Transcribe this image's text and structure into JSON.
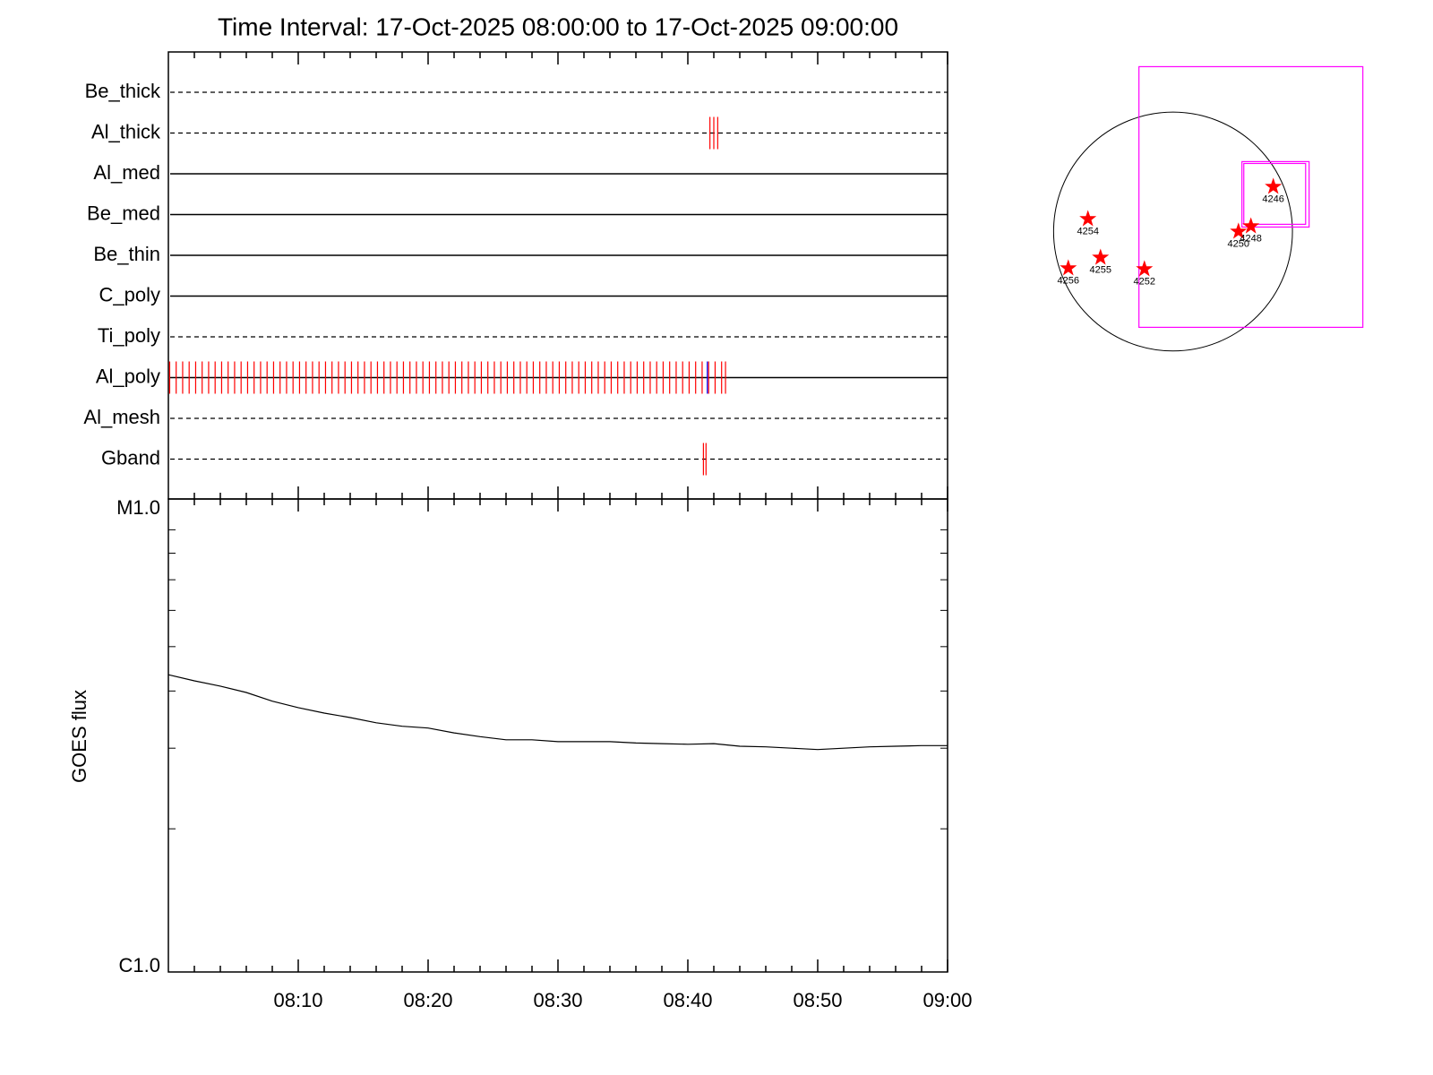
{
  "chart_data": [
    {
      "type": "timeline",
      "title": "Time Interval: 17-Oct-2025 08:00:00 to 17-Oct-2025 09:00:00",
      "xlim": [
        0,
        60
      ],
      "rows": [
        {
          "name": "Be_thick",
          "style": "dashed",
          "events": []
        },
        {
          "name": "Al_thick",
          "style": "dashed",
          "events": [
            {
              "color": "#ff0000",
              "x": [
                41.7,
                42.0,
                42.3
              ]
            }
          ]
        },
        {
          "name": "Al_med",
          "style": "solid",
          "events": []
        },
        {
          "name": "Be_med",
          "style": "solid",
          "events": []
        },
        {
          "name": "Be_thin",
          "style": "solid",
          "events": []
        },
        {
          "name": "C_poly",
          "style": "solid",
          "events": []
        },
        {
          "name": "Ti_poly",
          "style": "dashed",
          "events": []
        },
        {
          "name": "Al_poly",
          "style": "solid",
          "events": [
            {
              "color": "#ff0000",
              "x": [
                0.1,
                0.6,
                1.1,
                1.6,
                2.1,
                2.6,
                3.1,
                3.6,
                4.1,
                4.6,
                5.1,
                5.6,
                6.1,
                6.6,
                7.1,
                7.6,
                8.1,
                8.6,
                9.1,
                9.6,
                10.1,
                10.6,
                11.1,
                11.6,
                12.1,
                12.6,
                13.1,
                13.6,
                14.1,
                14.6,
                15.1,
                15.6,
                16.1,
                16.6,
                17.1,
                17.6,
                18.1,
                18.6,
                19.1,
                19.6,
                20.1,
                20.6,
                21.1,
                21.6,
                22.1,
                22.6,
                23.1,
                23.6,
                24.1,
                24.6,
                25.1,
                25.6,
                26.1,
                26.6,
                27.1,
                27.6,
                28.1,
                28.6,
                29.1,
                29.6,
                30.1,
                30.6,
                31.1,
                31.6,
                32.1,
                32.6,
                33.1,
                33.6,
                34.1,
                34.6,
                35.1,
                35.6,
                36.1,
                36.6,
                37.1,
                37.6,
                38.1,
                38.6,
                39.1,
                39.6,
                40.1,
                40.6,
                41.1,
                41.6,
                42.1,
                42.6,
                42.9
              ]
            },
            {
              "color": "#0000ff",
              "x": [
                41.5
              ]
            }
          ]
        },
        {
          "name": "Al_mesh",
          "style": "dashed",
          "events": []
        },
        {
          "name": "Gband",
          "style": "dashed",
          "events": [
            {
              "color": "#ff0000",
              "x": [
                41.2,
                41.4
              ]
            }
          ]
        }
      ]
    },
    {
      "type": "line",
      "ylabel": "GOES flux",
      "log_y": true,
      "xlim": [
        0,
        60
      ],
      "xticks": [
        {
          "value": 10,
          "label": "08:10"
        },
        {
          "value": 20,
          "label": "08:20"
        },
        {
          "value": 30,
          "label": "08:30"
        },
        {
          "value": 40,
          "label": "08:40"
        },
        {
          "value": 50,
          "label": "08:50"
        },
        {
          "value": 60,
          "label": "09:00"
        }
      ],
      "minor_xticks": [
        2,
        4,
        6,
        8,
        12,
        14,
        16,
        18,
        22,
        24,
        26,
        28,
        32,
        34,
        36,
        38,
        42,
        44,
        46,
        48,
        52,
        54,
        56,
        58
      ],
      "ylim": [
        1e-06,
        1e-05
      ],
      "yticks": [
        {
          "value": 1e-05,
          "label": "M1.0"
        },
        {
          "value": 1e-06,
          "label": "C1.0"
        }
      ],
      "minor_yticks": [
        2e-06,
        3e-06,
        4e-06,
        5e-06,
        6e-06,
        7e-06,
        8e-06,
        9e-06
      ],
      "color": "#000000",
      "x": [
        0,
        2,
        4,
        6,
        8,
        10,
        12,
        14,
        16,
        18,
        20,
        22,
        24,
        26,
        28,
        30,
        32,
        34,
        36,
        38,
        40,
        42,
        44,
        46,
        48,
        50,
        52,
        54,
        56,
        58,
        60
      ],
      "values": [
        4.34e-06,
        4.21e-06,
        4.1e-06,
        3.97e-06,
        3.8e-06,
        3.68e-06,
        3.58e-06,
        3.5e-06,
        3.41e-06,
        3.35e-06,
        3.32e-06,
        3.24e-06,
        3.18e-06,
        3.13e-06,
        3.13e-06,
        3.1e-06,
        3.1e-06,
        3.1e-06,
        3.08e-06,
        3.07e-06,
        3.06e-06,
        3.07e-06,
        3.03e-06,
        3.02e-06,
        3e-06,
        2.98e-06,
        3e-06,
        3.02e-06,
        3.03e-06,
        3.04e-06,
        3.04e-06
      ]
    },
    {
      "type": "scatter",
      "xlim": [
        -1150,
        1650
      ],
      "ylim": [
        -1000,
        1400
      ],
      "limb_radius": 960,
      "color": "#ff0000",
      "box_color": "#ff00ff",
      "boxes": [
        {
          "x": [
            -274,
            1526
          ],
          "y": [
            -770,
            1325
          ]
        },
        {
          "x": [
            554,
            1094
          ],
          "y": [
            36,
            562
          ]
        },
        {
          "x": [
            569,
            1066
          ],
          "y": [
            58,
            547
          ]
        }
      ],
      "labels": [
        "4254",
        "4255",
        "4256",
        "4252",
        "4250",
        "4248",
        "4246"
      ],
      "x": [
        -684,
        -583,
        -842,
        -230,
        526,
        626,
        806
      ],
      "y": [
        101,
        -209,
        -295,
        -302,
        0,
        43,
        360
      ]
    }
  ]
}
